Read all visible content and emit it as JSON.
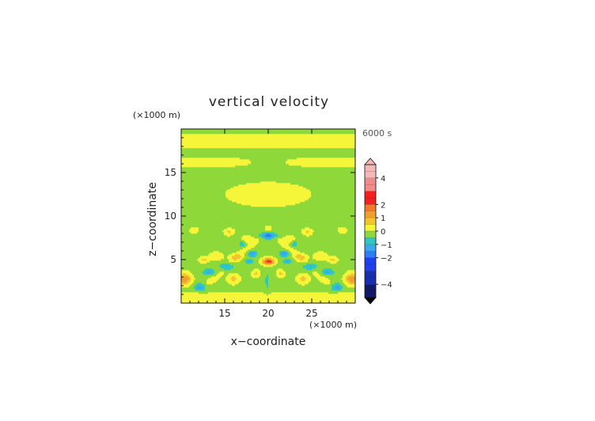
{
  "chart_data": {
    "type": "heatmap",
    "title": "vertical velocity",
    "xlabel": "x−coordinate",
    "ylabel": "z−coordinate",
    "x_unit": "(×1000 m)",
    "y_unit": "(×1000 m)",
    "time_label": "6000 s",
    "xlim": [
      10,
      30
    ],
    "ylim": [
      0,
      20
    ],
    "x_ticks": [
      15,
      20,
      25
    ],
    "y_ticks": [
      5,
      10,
      15
    ],
    "x_tick_labels": [
      "15",
      "20",
      "25"
    ],
    "y_tick_labels": [
      "5",
      "10",
      "15"
    ],
    "colorbar": {
      "range": [
        -5,
        5
      ],
      "tick_values": [
        4,
        2,
        1,
        0,
        -1,
        -2,
        -4
      ],
      "tick_labels": [
        "4",
        "2",
        "1",
        "0",
        "−1",
        "−2",
        "−4"
      ],
      "levels": [
        {
          "from": -5.0,
          "to": -4.0,
          "color": "#101a66"
        },
        {
          "from": -4.0,
          "to": -3.0,
          "color": "#1a2fb0"
        },
        {
          "from": -3.0,
          "to": -2.0,
          "color": "#2040f0"
        },
        {
          "from": -2.0,
          "to": -1.5,
          "color": "#2f7cf4"
        },
        {
          "from": -1.5,
          "to": -1.0,
          "color": "#3aa8f0"
        },
        {
          "from": -1.0,
          "to": -0.5,
          "color": "#2ec8c0"
        },
        {
          "from": -0.5,
          "to": 0.0,
          "color": "#8fd83a"
        },
        {
          "from": 0.0,
          "to": 0.5,
          "color": "#f5f53a"
        },
        {
          "from": 0.5,
          "to": 1.0,
          "color": "#f2c42e"
        },
        {
          "from": 1.0,
          "to": 1.5,
          "color": "#f0a02a"
        },
        {
          "from": 1.5,
          "to": 2.0,
          "color": "#f07a26"
        },
        {
          "from": 2.0,
          "to": 3.0,
          "color": "#f51f1f"
        },
        {
          "from": 3.0,
          "to": 4.0,
          "color": "#f08c8c"
        },
        {
          "from": 4.0,
          "to": 5.0,
          "color": "#f7b7b7"
        }
      ]
    },
    "features": [
      {
        "x": 20.0,
        "z": 4.8,
        "w": 2.6,
        "sx": 0.6,
        "sz": 0.35
      },
      {
        "x": 20.0,
        "z": 7.8,
        "w": -1.8,
        "sx": 1.0,
        "sz": 0.4
      },
      {
        "x": 19.9,
        "z": 2.5,
        "w": -0.6,
        "sx": 0.3,
        "sz": 1.2
      },
      {
        "x": 18.2,
        "z": 5.7,
        "w": -1.4,
        "sx": 0.5,
        "sz": 0.35
      },
      {
        "x": 21.8,
        "z": 5.7,
        "w": -1.4,
        "sx": 0.5,
        "sz": 0.35
      },
      {
        "x": 17.8,
        "z": 4.8,
        "w": -1.1,
        "sx": 0.5,
        "sz": 0.3
      },
      {
        "x": 22.2,
        "z": 4.8,
        "w": -1.1,
        "sx": 0.5,
        "sz": 0.3
      },
      {
        "x": 17.0,
        "z": 6.8,
        "w": -0.9,
        "sx": 0.4,
        "sz": 0.3
      },
      {
        "x": 23.0,
        "z": 6.8,
        "w": -0.9,
        "sx": 0.4,
        "sz": 0.3
      },
      {
        "x": 16.3,
        "z": 5.3,
        "w": 0.9,
        "sx": 0.6,
        "sz": 0.35
      },
      {
        "x": 23.7,
        "z": 5.3,
        "w": 0.9,
        "sx": 0.6,
        "sz": 0.35
      },
      {
        "x": 14.0,
        "z": 5.4,
        "w": 0.6,
        "sx": 0.7,
        "sz": 0.4
      },
      {
        "x": 26.0,
        "z": 5.4,
        "w": 0.6,
        "sx": 0.7,
        "sz": 0.4
      },
      {
        "x": 15.2,
        "z": 4.2,
        "w": -1.2,
        "sx": 0.8,
        "sz": 0.4
      },
      {
        "x": 24.8,
        "z": 4.2,
        "w": -1.2,
        "sx": 0.8,
        "sz": 0.4
      },
      {
        "x": 13.2,
        "z": 3.6,
        "w": -1.0,
        "sx": 0.8,
        "sz": 0.4
      },
      {
        "x": 26.8,
        "z": 3.6,
        "w": -1.0,
        "sx": 0.8,
        "sz": 0.4
      },
      {
        "x": 12.2,
        "z": 1.8,
        "w": -1.3,
        "sx": 0.7,
        "sz": 0.5
      },
      {
        "x": 27.8,
        "z": 1.8,
        "w": -1.3,
        "sx": 0.7,
        "sz": 0.5
      },
      {
        "x": 10.4,
        "z": 2.8,
        "w": 1.6,
        "sx": 0.7,
        "sz": 0.6
      },
      {
        "x": 29.6,
        "z": 2.8,
        "w": 1.6,
        "sx": 0.7,
        "sz": 0.6
      },
      {
        "x": 12.6,
        "z": 5.0,
        "w": 0.8,
        "sx": 0.5,
        "sz": 0.3
      },
      {
        "x": 27.4,
        "z": 5.0,
        "w": 0.8,
        "sx": 0.5,
        "sz": 0.3
      },
      {
        "x": 16.0,
        "z": 2.8,
        "w": 0.8,
        "sx": 0.6,
        "sz": 0.5
      },
      {
        "x": 24.0,
        "z": 2.8,
        "w": 0.8,
        "sx": 0.6,
        "sz": 0.5
      },
      {
        "x": 18.6,
        "z": 3.4,
        "w": 0.7,
        "sx": 0.4,
        "sz": 0.4
      },
      {
        "x": 21.4,
        "z": 3.4,
        "w": 0.7,
        "sx": 0.4,
        "sz": 0.4
      },
      {
        "x": 15.5,
        "z": 8.2,
        "w": 0.7,
        "sx": 0.5,
        "sz": 0.35
      },
      {
        "x": 24.5,
        "z": 8.2,
        "w": 0.7,
        "sx": 0.5,
        "sz": 0.35
      },
      {
        "x": 11.5,
        "z": 8.4,
        "w": 0.6,
        "sx": 0.4,
        "sz": 0.3
      },
      {
        "x": 28.5,
        "z": 8.4,
        "w": 0.6,
        "sx": 0.4,
        "sz": 0.3
      },
      {
        "x": 17.6,
        "z": 7.4,
        "w": 0.4,
        "sx": 0.6,
        "sz": 0.4
      },
      {
        "x": 22.4,
        "z": 7.4,
        "w": 0.4,
        "sx": 0.6,
        "sz": 0.4
      }
    ]
  }
}
